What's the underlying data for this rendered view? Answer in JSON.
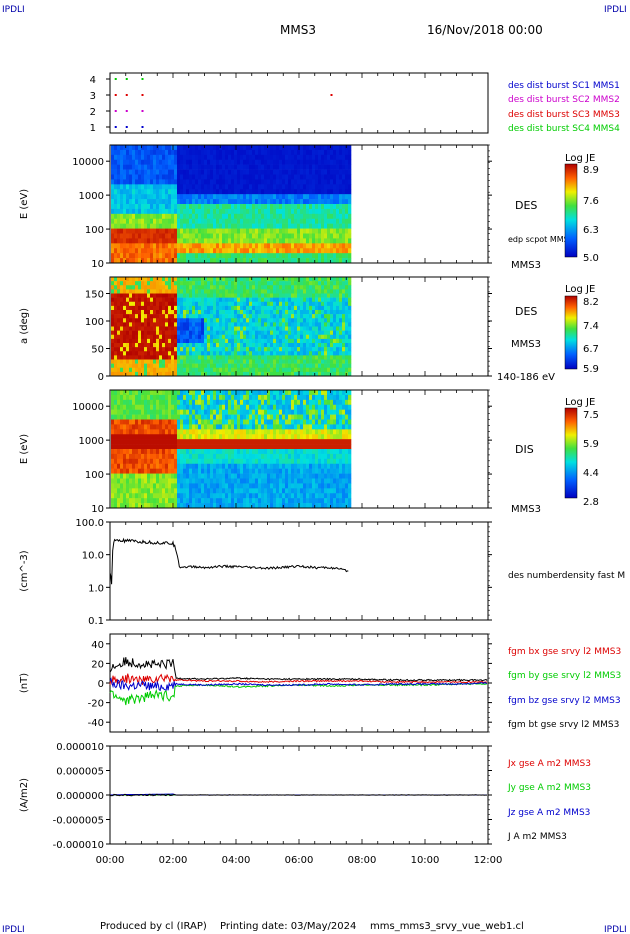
{
  "header": {
    "corner_tl": "IPDLI",
    "corner_tr": "IPDLI",
    "corner_bl": "IPDLI",
    "corner_br": "IPDLI",
    "spacecraft": "MMS3",
    "date": "16/Nov/2018 00:00"
  },
  "footer": {
    "produced": "Produced by cl (IRAP)",
    "printing": "Printing date: 03/May/2024",
    "file": "mms_mms3_srvy_vue_web1.cl"
  },
  "colors": {
    "mms1": "#0000cc",
    "mms2": "#cc00cc",
    "mms3": "#dd0000",
    "mms4": "#00cc00",
    "black": "#000000"
  },
  "chart_data": [
    {
      "id": "availability",
      "type": "scatter",
      "ylim": [
        1,
        4
      ],
      "yticks": [
        "1",
        "2",
        "3",
        "4"
      ],
      "legend": [
        "des dist burst SC1 MMS1",
        "des dist burst SC2 MMS2",
        "des dist burst SC3 MMS3",
        "des dist burst SC4 MMS4"
      ],
      "series": [
        {
          "name": "des dist burst SC1 MMS1",
          "y": 1,
          "x": [
            0.15,
            0.5,
            1.0
          ]
        },
        {
          "name": "des dist burst SC2 MMS2",
          "y": 2,
          "x": [
            0.15,
            0.5,
            1.0
          ]
        },
        {
          "name": "des dist burst SC3 MMS3",
          "y": 3,
          "x": [
            0.15,
            0.5,
            1.0,
            7.0
          ]
        },
        {
          "name": "des dist burst SC4 MMS4",
          "y": 4,
          "x": [
            0.15,
            0.5,
            1.0
          ]
        }
      ]
    },
    {
      "id": "des-energy",
      "type": "heatmap",
      "ylabel": "E (eV)",
      "ylim": [
        10,
        30000
      ],
      "yscale": "log",
      "yticks": [
        "10",
        "100",
        "1000",
        "10000"
      ],
      "data_end_hour": 7.6,
      "right_labels": [
        "DES",
        "edp scpot MMS3",
        "MMS3"
      ],
      "colorbar": {
        "title": "Log JE",
        "ticks": [
          "8.9",
          "7.6",
          "6.3",
          "5.0"
        ]
      }
    },
    {
      "id": "des-pitch",
      "type": "heatmap",
      "ylabel": "a (deg)",
      "ylim": [
        0,
        180
      ],
      "yticks": [
        "0",
        "50",
        "100",
        "150"
      ],
      "data_end_hour": 7.6,
      "right_labels": [
        "DES",
        "MMS3",
        "140-186 eV"
      ],
      "colorbar": {
        "title": "Log JE",
        "ticks": [
          "8.2",
          "7.4",
          "6.7",
          "5.9"
        ]
      }
    },
    {
      "id": "dis-energy",
      "type": "heatmap",
      "ylabel": "E (eV)",
      "ylim": [
        10,
        30000
      ],
      "yscale": "log",
      "yticks": [
        "10",
        "100",
        "1000",
        "10000"
      ],
      "data_end_hour": 7.6,
      "right_labels": [
        "DIS",
        "MMS3"
      ],
      "colorbar": {
        "title": "Log JE",
        "ticks": [
          "7.5",
          "5.9",
          "4.4",
          "2.8"
        ]
      }
    },
    {
      "id": "density",
      "type": "line",
      "ylabel": "(cm^-3)",
      "ylim": [
        0.1,
        100
      ],
      "yscale": "log",
      "yticks": [
        "0.1",
        "1.0",
        "10.0",
        "100.0"
      ],
      "legend": [
        "des numberdensity fast M"
      ],
      "series": [
        {
          "name": "des numberdensity fast M",
          "x": [
            0.0,
            0.05,
            0.12,
            0.2,
            0.4,
            0.8,
            1.2,
            1.6,
            2.0,
            2.08,
            2.2,
            2.6,
            3.0,
            3.5,
            4.0,
            4.5,
            5.0,
            5.5,
            6.0,
            6.5,
            7.0,
            7.3,
            7.6
          ],
          "values": [
            3,
            1.2,
            25,
            28,
            27,
            25,
            24,
            23,
            22,
            15,
            4.2,
            4.3,
            4.0,
            4.4,
            4.3,
            4.0,
            3.8,
            4.1,
            4.5,
            4.0,
            4.0,
            3.6,
            3.0
          ]
        }
      ]
    },
    {
      "id": "bfield",
      "type": "line",
      "ylabel": "(nT)",
      "ylim": [
        -50,
        50
      ],
      "yticks": [
        "-40",
        "-20",
        "0",
        "20",
        "40"
      ],
      "legend": [
        "fgm bx gse srvy l2 MMS3",
        "fgm by gse srvy l2 MMS3",
        "fgm bz gse srvy l2 MMS3",
        "fgm bt gse srvy l2 MMS3"
      ],
      "series": [
        {
          "name": "fgm bx gse srvy l2 MMS3",
          "x": [
            0,
            0.5,
            1.0,
            1.5,
            2.0,
            2.1,
            3,
            4,
            5,
            6,
            7,
            8,
            9,
            10,
            11,
            12
          ],
          "values": [
            2,
            5,
            3,
            4,
            6,
            3,
            2,
            2,
            1,
            2,
            2,
            2,
            1,
            1,
            1,
            1
          ]
        },
        {
          "name": "fgm by gse srvy l2 MMS3",
          "x": [
            0,
            0.5,
            1.0,
            1.5,
            2.0,
            2.1,
            3,
            4,
            5,
            6,
            7,
            8,
            9,
            10,
            11,
            12
          ],
          "values": [
            -10,
            -18,
            -15,
            -12,
            -14,
            -3,
            -2,
            -4,
            -3,
            -2,
            -3,
            -2,
            -2,
            -2,
            -1,
            -1
          ]
        },
        {
          "name": "fgm bz gse srvy l2 MMS3",
          "x": [
            0,
            0.5,
            1.0,
            1.5,
            2.0,
            2.1,
            3,
            4,
            5,
            6,
            7,
            8,
            9,
            10,
            11,
            12
          ],
          "values": [
            0,
            -3,
            -2,
            -4,
            -2,
            -1,
            -2,
            -1,
            -2,
            -2,
            -1,
            -2,
            -1,
            -1,
            -1,
            0
          ]
        },
        {
          "name": "fgm bt gse srvy l2 MMS3",
          "x": [
            0,
            0.5,
            1.0,
            1.5,
            2.0,
            2.1,
            3,
            4,
            5,
            6,
            7,
            8,
            9,
            10,
            11,
            12
          ],
          "values": [
            15,
            22,
            20,
            18,
            20,
            5,
            4,
            5,
            4,
            4,
            4,
            4,
            3,
            3,
            3,
            3
          ]
        }
      ]
    },
    {
      "id": "current",
      "type": "line",
      "ylabel": "(A/m2)",
      "ylim": [
        -1e-05,
        1e-05
      ],
      "yticks": [
        "-0.000010",
        "-0.000005",
        "0.000000",
        "0.000005",
        "0.000010"
      ],
      "legend": [
        "Jx gse A m2 MMS3",
        "Jy gse A m2 MMS3",
        "Jz gse A m2 MMS3",
        "J A m2 MMS3"
      ],
      "series": [
        {
          "name": "Jx gse A m2 MMS3",
          "x": [
            0,
            2,
            4,
            8,
            12
          ],
          "values": [
            0,
            0,
            0,
            0,
            0
          ]
        },
        {
          "name": "Jy gse A m2 MMS3",
          "x": [
            0,
            2,
            4,
            8,
            12
          ],
          "values": [
            0,
            0,
            0,
            0,
            0
          ]
        },
        {
          "name": "Jz gse A m2 MMS3",
          "x": [
            0,
            0.5,
            1,
            2,
            2.1,
            4,
            12
          ],
          "values": [
            0,
            1e-07,
            1e-07,
            2e-07,
            0,
            0,
            0
          ]
        },
        {
          "name": "J A m2 MMS3",
          "x": [
            0,
            2,
            4,
            8,
            12
          ],
          "values": [
            0,
            0,
            0,
            0,
            0
          ]
        }
      ]
    }
  ],
  "time_axis": {
    "xlim_hours": [
      0,
      12
    ],
    "ticks": [
      "00:00",
      "02:00",
      "04:00",
      "06:00",
      "08:00",
      "10:00",
      "12:00"
    ]
  }
}
